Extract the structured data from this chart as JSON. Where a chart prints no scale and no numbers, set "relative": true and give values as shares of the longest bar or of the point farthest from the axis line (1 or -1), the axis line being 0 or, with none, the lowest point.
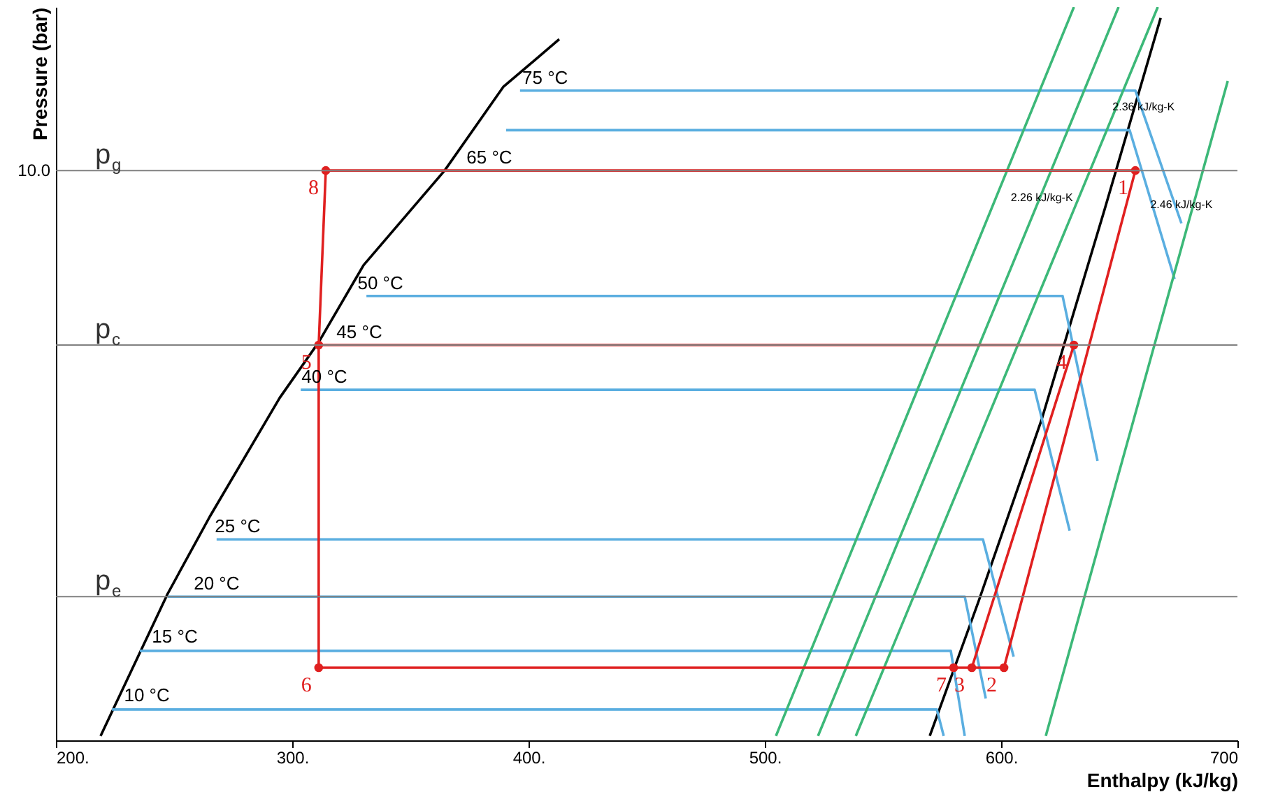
{
  "chart_data": {
    "type": "line",
    "relative": true,
    "xlabel": "Enthalpy (kJ/kg)",
    "ylabel": "Pressure (bar)",
    "xlim": [
      200,
      700
    ],
    "xticks": [
      {
        "value": 200,
        "label": "200."
      },
      {
        "value": 300,
        "label": "300."
      },
      {
        "value": 400,
        "label": "400."
      },
      {
        "value": 500,
        "label": "500."
      },
      {
        "value": 600,
        "label": "600."
      },
      {
        "value": 700,
        "label": "700"
      }
    ],
    "grid": false,
    "series": [
      {
        "type": "line",
        "color": "#000000",
        "x": [
          218.9,
          247.3,
          265.1,
          294.7,
          311.2,
          330.2,
          364.5,
          389.3,
          413.0
        ],
        "values": [
          0.006,
          0.2,
          0.305,
          0.467,
          0.543,
          0.648,
          0.777,
          0.891,
          0.956
        ]
      },
      {
        "type": "line",
        "color": "#000000",
        "x": [
          569.8,
          590.5,
          617.2,
          643.8,
          667.5
        ],
        "values": [
          0.006,
          0.19,
          0.438,
          0.724,
          0.985
        ]
      },
      {
        "type": "line",
        "color": "#5aaee0",
        "x": [
          396.4,
          656.8,
          676.3
        ],
        "values": [
          0.886,
          0.886,
          0.705
        ]
      },
      {
        "type": "line",
        "color": "#5aaee0",
        "x": [
          390.5,
          654.4,
          673.4
        ],
        "values": [
          0.832,
          0.832,
          0.629
        ]
      },
      {
        "type": "line",
        "color": "#5aaee0",
        "x": [
          331.4,
          626.0,
          640.8
        ],
        "values": [
          0.606,
          0.606,
          0.381
        ]
      },
      {
        "type": "line",
        "color": "#5aaee0",
        "x": [
          303.6,
          614.2,
          629.0
        ],
        "values": [
          0.478,
          0.478,
          0.286
        ]
      },
      {
        "type": "line",
        "color": "#5aaee0",
        "x": [
          268.0,
          592.3,
          605.3
        ],
        "values": [
          0.274,
          0.274,
          0.114
        ]
      },
      {
        "type": "line",
        "color": "#5aaee0",
        "x": [
          247.3,
          584.6,
          593.5
        ],
        "values": [
          0.196,
          0.196,
          0.057
        ]
      },
      {
        "type": "line",
        "color": "#5aaee0",
        "x": [
          235.5,
          578.7,
          584.6
        ],
        "values": [
          0.122,
          0.122,
          0.006
        ]
      },
      {
        "type": "line",
        "color": "#5aaee0",
        "x": [
          223.7,
          572.8,
          575.7
        ],
        "values": [
          0.042,
          0.042,
          0.006
        ]
      },
      {
        "type": "line",
        "color": "#3cb878",
        "x": [
          504.7,
          630.8
        ],
        "values": [
          0.006,
          1.0
        ]
      },
      {
        "type": "line",
        "color": "#3cb878",
        "x": [
          522.5,
          649.7
        ],
        "values": [
          0.006,
          1.0
        ]
      },
      {
        "type": "line",
        "color": "#3cb878",
        "x": [
          538.5,
          666.3
        ],
        "values": [
          0.006,
          1.0
        ]
      },
      {
        "type": "line",
        "color": "#3cb878",
        "x": [
          618.9,
          695.9
        ],
        "values": [
          0.006,
          0.899
        ]
      },
      {
        "type": "line",
        "color": "#e02020",
        "x": [
          314.2,
          656.8,
          601.2,
          311.2
        ],
        "values": [
          0.777,
          0.777,
          0.099,
          0.099
        ]
      },
      {
        "type": "line",
        "color": "#e02020",
        "x": [
          314.2,
          311.2,
          311.2
        ],
        "values": [
          0.777,
          0.539,
          0.099
        ]
      },
      {
        "type": "line",
        "color": "#e02020",
        "x": [
          311.2,
          630.8,
          587.6
        ],
        "values": [
          0.539,
          0.539,
          0.099
        ]
      },
      {
        "type": "scatter",
        "color": "#e02020",
        "x": [
          656.8,
          601.2,
          587.6,
          630.8,
          311.2,
          311.2,
          579.9,
          314.2
        ],
        "values": [
          0.777,
          0.099,
          0.099,
          0.539,
          0.539,
          0.099,
          0.099,
          0.777
        ]
      }
    ],
    "ref_lines": [
      {
        "axis": "y",
        "value": 0.777,
        "label": "p$_{g}$",
        "color": "#808080"
      },
      {
        "axis": "y",
        "value": 0.539,
        "label": "p$_{c}$",
        "color": "#808080"
      },
      {
        "axis": "y",
        "value": 0.196,
        "label": "p$_{e}$",
        "color": "#808080"
      }
    ],
    "annotations": [
      {
        "text": "10.0",
        "x": 200,
        "y": 0.777
      },
      {
        "text": "75 °C",
        "x": 407,
        "y": 0.886
      },
      {
        "text": "65 °C",
        "x": 383.4,
        "y": 0.777
      },
      {
        "text": "50 °C",
        "x": 337.3,
        "y": 0.606
      },
      {
        "text": "45 °C",
        "x": 328.4,
        "y": 0.539
      },
      {
        "text": "40 °C",
        "x": 313.6,
        "y": 0.478
      },
      {
        "text": "25 °C",
        "x": 276.9,
        "y": 0.274
      },
      {
        "text": "20 °C",
        "x": 268,
        "y": 0.196
      },
      {
        "text": "15 °C",
        "x": 250.3,
        "y": 0.124
      },
      {
        "text": "10 °C",
        "x": 238.5,
        "y": 0.044
      },
      {
        "text": "1",
        "x": 656.8,
        "y": 0.777
      },
      {
        "text": "8",
        "x": 314.2,
        "y": 0.777
      },
      {
        "text": "5",
        "x": 311.2,
        "y": 0.539
      },
      {
        "text": "4",
        "x": 630.8,
        "y": 0.539
      },
      {
        "text": "6",
        "x": 311.2,
        "y": 0.099
      },
      {
        "text": "7",
        "x": 579.9,
        "y": 0.099
      },
      {
        "text": "3",
        "x": 587.6,
        "y": 0.099
      },
      {
        "text": "2",
        "x": 601.2,
        "y": 0.099
      },
      {
        "text": "2.36 kJ/kg-K",
        "x": 660.3,
        "y": 0.851
      },
      {
        "text": "2.26 kJ/kg-K",
        "x": 617.2,
        "y": 0.728
      },
      {
        "text": "2.46 kJ/kg-K",
        "x": 676.3,
        "y": 0.718
      }
    ]
  }
}
